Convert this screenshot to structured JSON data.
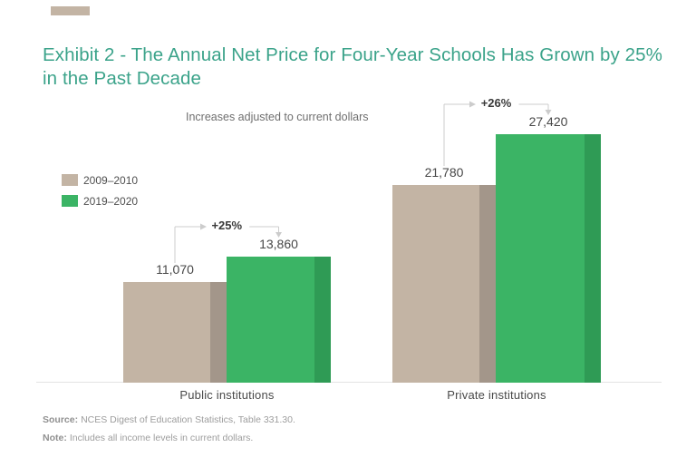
{
  "page": {
    "title": "Exhibit 2 - The Annual Net Price for Four-Year Schools Has Grown by 25% in the Past Decade",
    "subtitle": "Increases adjusted to current dollars"
  },
  "chart_data": {
    "type": "bar",
    "title": "Exhibit 2 - The Annual Net Price for Four-Year Schools Has Grown by 25% in the Past Decade",
    "subtitle": "Increases adjusted to current dollars",
    "categories": [
      "Public institutions",
      "Private institutions"
    ],
    "series": [
      {
        "name": "2009–2010",
        "values": [
          11070,
          21780
        ],
        "labels": [
          "11,070",
          "21,780"
        ],
        "color": "#C3B4A4",
        "edge_color": "#A3968A"
      },
      {
        "name": "2019–2020",
        "values": [
          13860,
          27420
        ],
        "labels": [
          "13,860",
          "27,420"
        ],
        "color": "#3BB465",
        "edge_color": "#2F9B55"
      }
    ],
    "growth_annotations": [
      "+25%",
      "+26%"
    ],
    "ylim": [
      0,
      27500
    ],
    "grid": false,
    "legend_position": "upper-left"
  },
  "footer": {
    "source_label": "Source:",
    "source_text": "NCES Digest of Education Statistics, Table 331.30.",
    "note_label": "Note:",
    "note_text": "Includes all income levels in current dollars."
  },
  "colors": {
    "title_accent": "#3BA38A",
    "bar_2009": "#C3B4A4",
    "bar_2019": "#3BB465",
    "arrow": "#CCCCCC",
    "axis_line": "#E4E4E4"
  }
}
